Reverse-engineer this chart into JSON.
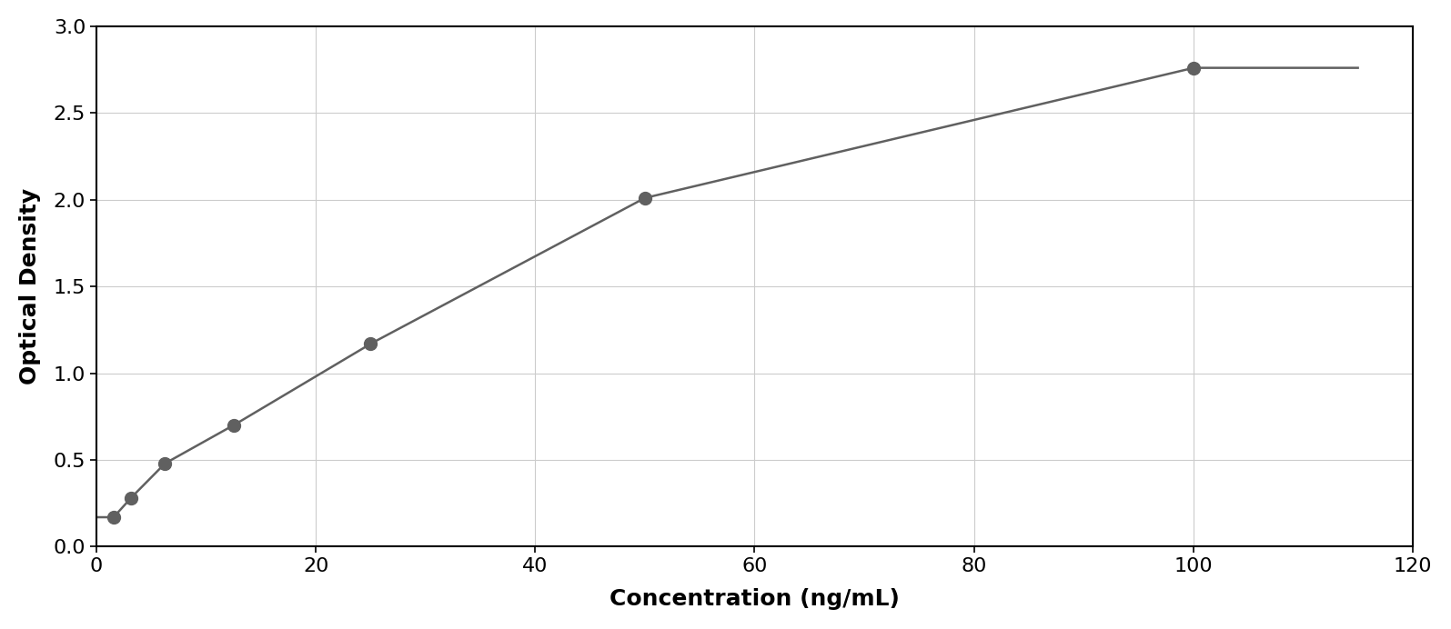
{
  "x_data": [
    1.5625,
    3.125,
    6.25,
    12.5,
    25.0,
    50.0,
    100.0
  ],
  "y_data": [
    0.17,
    0.28,
    0.48,
    0.7,
    1.17,
    2.01,
    2.76
  ],
  "xlabel": "Concentration (ng/mL)",
  "ylabel": "Optical Density",
  "xlim": [
    0,
    120
  ],
  "ylim": [
    0,
    3
  ],
  "xticks": [
    0,
    20,
    40,
    60,
    80,
    100,
    120
  ],
  "yticks": [
    0,
    0.5,
    1.0,
    1.5,
    2.0,
    2.5,
    3.0
  ],
  "marker_color": "#606060",
  "line_color": "#606060",
  "marker_size": 10,
  "line_width": 1.8,
  "grid_color": "#cccccc",
  "background_color": "#ffffff",
  "border_color": "#000000",
  "xlabel_fontsize": 18,
  "ylabel_fontsize": 18,
  "tick_fontsize": 16,
  "xlabel_fontweight": "bold",
  "ylabel_fontweight": "bold"
}
